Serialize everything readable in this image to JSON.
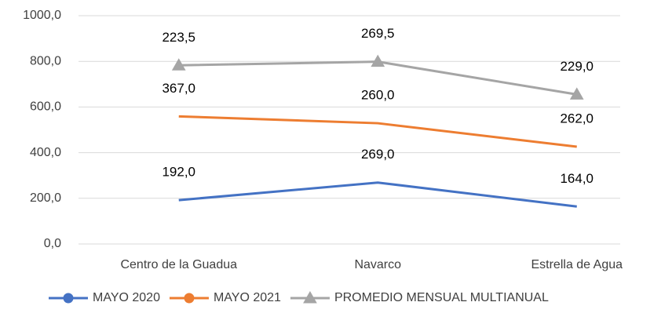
{
  "chart_data": {
    "type": "line",
    "stacked": true,
    "categories": [
      "Centro de la Guadua",
      "Navarco",
      "Estrella de Agua"
    ],
    "series": [
      {
        "name": "MAYO 2020",
        "color": "#4472c4",
        "marker": "circle",
        "values": [
          192,
          269,
          164
        ],
        "value_labels": [
          "192,0",
          "269,0",
          "164,0"
        ]
      },
      {
        "name": "MAYO 2021",
        "color": "#ed7d31",
        "marker": "circle",
        "values": [
          367,
          260,
          262
        ],
        "value_labels": [
          "367,0",
          "260,0",
          "262,0"
        ]
      },
      {
        "name": "PROMEDIO MENSUAL MULTIANUAL",
        "color": "#a5a5a5",
        "marker": "triangle",
        "values": [
          223.5,
          269.5,
          229
        ],
        "value_labels": [
          "223,5",
          "269,5",
          "229,0"
        ]
      }
    ],
    "ylim": [
      0,
      1000
    ],
    "yticks": [
      {
        "value": 0,
        "label": "0,0"
      },
      {
        "value": 200,
        "label": "200,0"
      },
      {
        "value": 400,
        "label": "400,0"
      },
      {
        "value": 600,
        "label": "600,0"
      },
      {
        "value": 800,
        "label": "800,0"
      },
      {
        "value": 1000,
        "label": "1000,0"
      }
    ],
    "grid": true,
    "legend": "bottom"
  }
}
